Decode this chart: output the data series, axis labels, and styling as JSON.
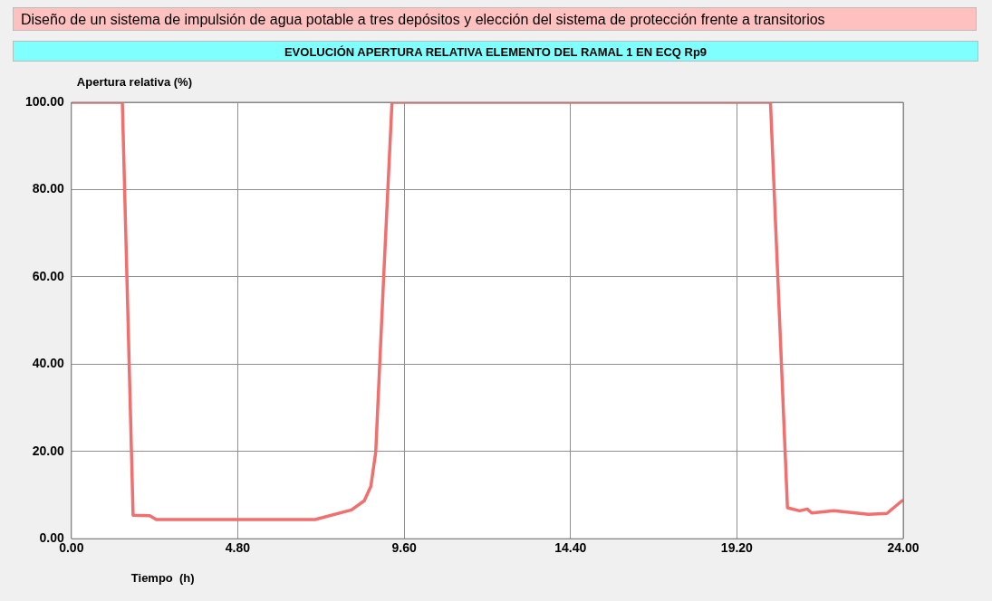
{
  "chart_data": {
    "type": "line",
    "title": "Diseño de un sistema de impulsión de agua potable a tres depósitos y elección del sistema de protección frente a transitorios",
    "subtitle": "EVOLUCIÓN APERTURA RELATIVA ELEMENTO DEL RAMAL 1 EN ECQ Rp9",
    "xlabel": "Tiempo  (h)",
    "ylabel": "Apertura relativa (%)",
    "xlim": [
      0,
      24
    ],
    "ylim": [
      0,
      100
    ],
    "xticks": [
      {
        "value": 0,
        "label": "0.00"
      },
      {
        "value": 4.8,
        "label": "4.80"
      },
      {
        "value": 9.6,
        "label": "9.60"
      },
      {
        "value": 14.4,
        "label": "14.40"
      },
      {
        "value": 19.2,
        "label": "19.20"
      },
      {
        "value": 24,
        "label": "24.00"
      }
    ],
    "yticks": [
      {
        "value": 0,
        "label": "0.00"
      },
      {
        "value": 20,
        "label": "20.00"
      },
      {
        "value": 40,
        "label": "40.00"
      },
      {
        "value": 60,
        "label": "60.00"
      },
      {
        "value": 80,
        "label": "80.00"
      },
      {
        "value": 100,
        "label": "100.00"
      }
    ],
    "grid": true,
    "marker": "none",
    "line_style": "solid",
    "series": [
      {
        "color": "#f07070",
        "x": [
          0,
          1.47,
          1.78,
          2.26,
          2.45,
          7.03,
          8.08,
          8.45,
          8.64,
          8.78,
          9.01,
          9.25,
          20.17,
          20.66,
          21.01,
          21.23,
          21.36,
          22.0,
          23.0,
          23.53,
          23.95,
          24
        ],
        "values": [
          100,
          100,
          5.4,
          5.3,
          4.4,
          4.4,
          6.6,
          8.7,
          12,
          19.8,
          60,
          100,
          100,
          7.1,
          6.4,
          6.8,
          5.9,
          6.4,
          5.6,
          5.8,
          8.6,
          8.8
        ]
      }
    ]
  }
}
